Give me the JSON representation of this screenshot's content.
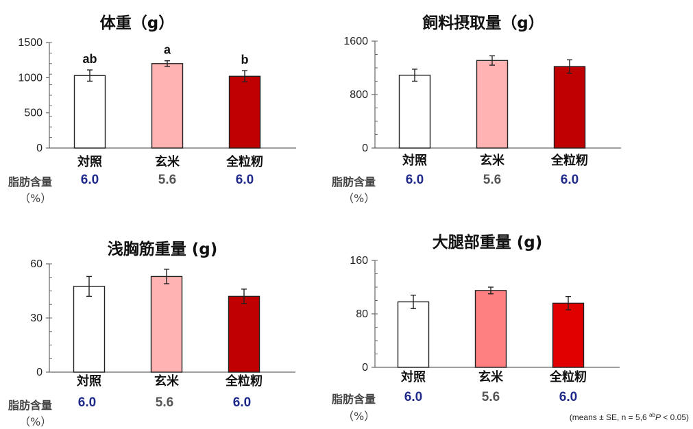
{
  "chart_data": [
    {
      "type": "bar",
      "title": "体重（g）",
      "categories": [
        "対照",
        "玄米",
        "全粒籾"
      ],
      "values": [
        1030,
        1200,
        1020
      ],
      "errors": [
        80,
        40,
        80
      ],
      "significance": [
        "ab",
        "a",
        "b"
      ],
      "yticks": [
        "0",
        "500",
        "1000",
        "1500"
      ],
      "ylim": [
        0,
        1500
      ],
      "colors": [
        "#ffffff",
        "#ffb3b3",
        "#c00000"
      ]
    },
    {
      "type": "bar",
      "title": "飼料摂取量（g）",
      "categories": [
        "対照",
        "玄米",
        "全粒籾"
      ],
      "values": [
        1090,
        1310,
        1220
      ],
      "errors": [
        90,
        70,
        100
      ],
      "significance": [
        "",
        "",
        ""
      ],
      "yticks": [
        "0",
        "800",
        "1600"
      ],
      "ylim": [
        0,
        1600
      ],
      "colors": [
        "#ffffff",
        "#ffb3b3",
        "#c00000"
      ]
    },
    {
      "type": "bar",
      "title": "浅胸筋重量 (g)",
      "categories": [
        "対照",
        "玄米",
        "全粒籾"
      ],
      "values": [
        47.5,
        53,
        42
      ],
      "errors": [
        5.5,
        4,
        4
      ],
      "significance": [
        "",
        "",
        ""
      ],
      "yticks": [
        "0",
        "30",
        "60"
      ],
      "ylim": [
        0,
        60
      ],
      "colors": [
        "#ffffff",
        "#ffb3b3",
        "#c00000"
      ]
    },
    {
      "type": "bar",
      "title": "大腿部重量 (g)",
      "categories": [
        "対照",
        "玄米",
        "全粒籾"
      ],
      "values": [
        98,
        115,
        96
      ],
      "errors": [
        10,
        5,
        10
      ],
      "significance": [
        "",
        "",
        ""
      ],
      "yticks": [
        "0",
        "80",
        "160"
      ],
      "ylim": [
        0,
        160
      ],
      "colors": [
        "#ffffff",
        "#ff8080",
        "#e00000"
      ]
    }
  ],
  "fat": {
    "label": "脂肪含量",
    "unit": "（%）",
    "values": [
      "6.0",
      "5.6",
      "6.0"
    ]
  },
  "footnote": {
    "pre": "(means ± SE, n = 5,6 ",
    "sup": "ab",
    "p": "P",
    "post": " < 0.05)"
  }
}
